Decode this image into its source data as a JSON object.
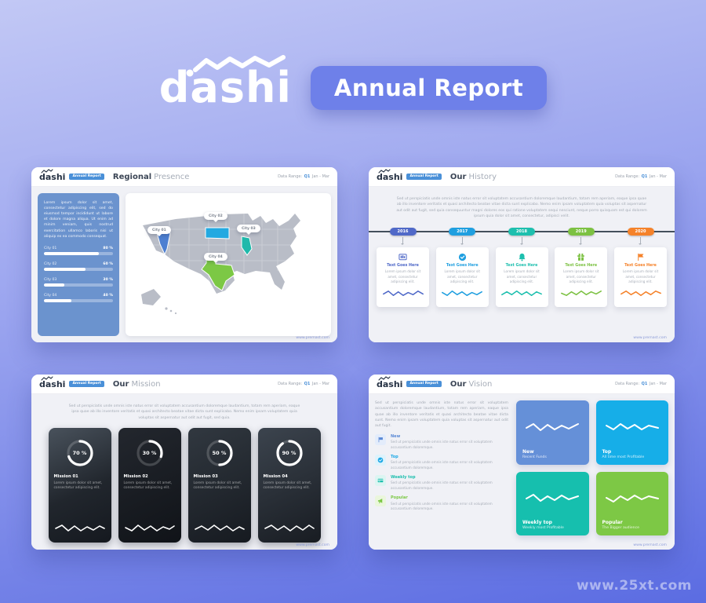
{
  "page": {
    "watermark": "www.25xt.com"
  },
  "header": {
    "logo_text": "dashi",
    "badge_label": "Annual Report"
  },
  "chrome": {
    "logo_text": "dashi",
    "logo_badge": "Annual Report",
    "data_range_label": "Data Range:",
    "data_range_quarter": "Q1",
    "data_range_period": "Jan - Mar",
    "footer_url": "www.premast.com"
  },
  "regional": {
    "title_primary": "Regional",
    "title_secondary": "Presence",
    "intro": "Lorem ipsum dolor sit amet, consectetur adipiscing elit, sed do eiusmod tempor incididunt ut labore et dolore magna aliqua. Ut enim ad minim veniam, quis nostrud exercitation ullamco laboris nisi ut aliquip ex ea commodo consequat.",
    "cities": [
      {
        "label": "City 01",
        "value": "80 %",
        "pct": 80,
        "state_color": "#4d7fd1"
      },
      {
        "label": "City 02",
        "value": "60 %",
        "pct": 60,
        "state_color": "#23a9e1"
      },
      {
        "label": "City 03",
        "value": "30 %",
        "pct": 30,
        "state_color": "#1fb9ab"
      },
      {
        "label": "City 04",
        "value": "40 %",
        "pct": 40,
        "state_color": "#7cc845"
      }
    ]
  },
  "history": {
    "title_primary": "Our",
    "title_secondary": "History",
    "intro": "Sed ut perspiciatis unde omnis iste natus error sit voluptatem accusantium doloremque laudantium, totam rem aperiam, eaque ipsa quae ab illo inventore veritatis et quasi architecto beatae vitae dicta sunt explicabo. Nemo enim ipsam voluptatem quia voluptas sit aspernatur aut odit aut fugit, sed quia consequuntur magni dolores eos qui ratione voluptatem sequi nesciunt, neque porro quisquam est qui dolorem ipsum quia dolor sit amet, consectetur, adipisci velit.",
    "events": [
      {
        "year": "2016",
        "color": "#5069c8",
        "title": "Text Goes Here",
        "text": "Lorem ipsum dolor sit amet, consectetur adipiscing elit."
      },
      {
        "year": "2017",
        "color": "#1f9fe0",
        "title": "Text Goes Here",
        "text": "Lorem ipsum dolor sit amet, consectetur adipiscing elit."
      },
      {
        "year": "2018",
        "color": "#1dbfae",
        "title": "Text Goes Here",
        "text": "Lorem ipsum dolor sit amet, consectetur adipiscing elit."
      },
      {
        "year": "2019",
        "color": "#7cc142",
        "title": "Text Goes Here",
        "text": "Lorem ipsum dolor sit amet, consectetur adipiscing elit."
      },
      {
        "year": "2020",
        "color": "#f5822a",
        "title": "Text Goes Here",
        "text": "Lorem ipsum dolor sit amet, consectetur adipiscing elit."
      }
    ]
  },
  "mission": {
    "title_primary": "Our",
    "title_secondary": "Mission",
    "intro": "Sed ut perspiciatis unde omnis iste natus error sit voluptatem accusantium doloremque laudantium, totam rem aperiam, eaque ipsa quae ab illo inventore veritatis et quasi architecto beatae vitae dicta sunt explicabo. Nemo enim ipsam voluptatem quia voluptas sit aspernatur aut odit aut fugit, sed quia.",
    "cards": [
      {
        "title": "Mission 01",
        "value": "70 %",
        "pct": 70,
        "text": "Lorem ipsum dolor sit amet, consectetur adipiscing elit."
      },
      {
        "title": "Mission 02",
        "value": "30 %",
        "pct": 30,
        "text": "Lorem ipsum dolor sit amet, consectetur adipiscing elit."
      },
      {
        "title": "Mission 03",
        "value": "50 %",
        "pct": 50,
        "text": "Lorem ipsum dolor sit amet, consectetur adipiscing elit."
      },
      {
        "title": "Mission 04",
        "value": "90 %",
        "pct": 90,
        "text": "Lorem ipsum dolor sit amet, consectetur adipiscing elit."
      }
    ]
  },
  "vision": {
    "title_primary": "Our",
    "title_secondary": "Vision",
    "intro": "Sed ut perspiciatis unde omnis iste natus error sit voluptatem accusantium doloremque laudantium, totam rem aperiam, eaque ipsa quae ab illo inventore veritatis et quasi architecto beatae vitae dicta sunt. Nemo enim ipsam voluptatem quia voluptas sit aspernatur aut odit aut fugit.",
    "items": [
      {
        "title": "New",
        "color": "#5b8ad6",
        "tile": "#e3ecfb",
        "text": "Sed ut perspiciatis unde omnis iste natus error sit voluptatem accusantium doloremque."
      },
      {
        "title": "Top",
        "color": "#1fa9e6",
        "tile": "#def3fc",
        "text": "Sed ut perspiciatis unde omnis iste natus error sit voluptatem accusantium doloremque."
      },
      {
        "title": "Weekly top",
        "color": "#1dbfae",
        "tile": "#dcf5f2",
        "text": "Sed ut perspiciatis unde omnis iste natus error sit voluptatem accusantium doloremque."
      },
      {
        "title": "Popular",
        "color": "#7cc845",
        "tile": "#eaf6dc",
        "text": "Sed ut perspiciatis unde omnis iste natus error sit voluptatem accusantium doloremque."
      }
    ],
    "cards": [
      {
        "title": "New",
        "subtitle": "Recent Funds",
        "color": "#6590d8"
      },
      {
        "title": "Top",
        "subtitle": "All time most Profitable",
        "color": "#16aee8"
      },
      {
        "title": "Weekly top",
        "subtitle": "Weekly most Profitable",
        "color": "#16bfae"
      },
      {
        "title": "Popular",
        "subtitle": "The Bigger audience",
        "color": "#7dc845"
      }
    ]
  }
}
